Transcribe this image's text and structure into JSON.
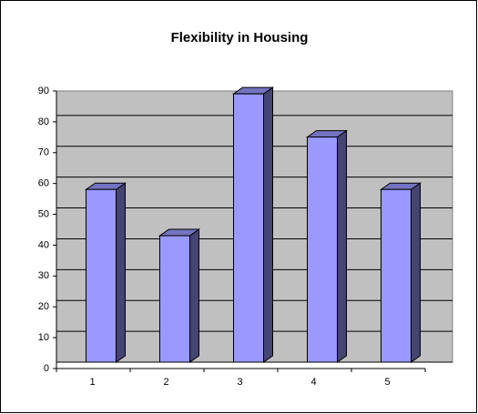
{
  "chart_data": {
    "type": "bar",
    "title": "Flexibility in Housing",
    "categories": [
      "1",
      "2",
      "3",
      "4",
      "5"
    ],
    "values": [
      56,
      41,
      87,
      73,
      56
    ],
    "color": "#9999ff",
    "ylim": [
      0,
      90
    ],
    "yticks": [
      0,
      10,
      20,
      30,
      40,
      50,
      60,
      70,
      80,
      90
    ],
    "grid": true
  }
}
